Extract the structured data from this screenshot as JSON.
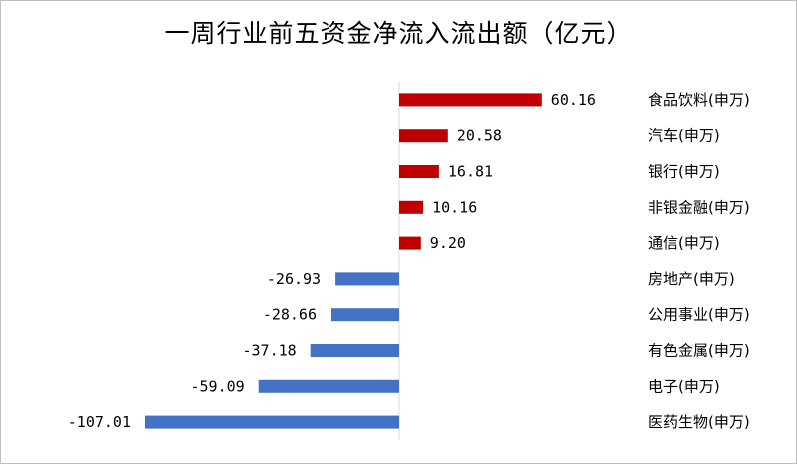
{
  "chart_data": {
    "type": "bar",
    "orientation": "horizontal",
    "title": "一周行业前五资金净流入流出额（亿元）",
    "xlabel": "",
    "ylabel": "",
    "categories": [
      "食品饮料(申万)",
      "汽车(申万)",
      "银行(申万)",
      "非银金融(申万)",
      "通信(申万)",
      "房地产(申万)",
      "公用事业(申万)",
      "有色金属(申万)",
      "电子(申万)",
      "医药生物(申万)"
    ],
    "values": [
      60.16,
      20.58,
      16.81,
      10.16,
      9.2,
      -26.93,
      -28.66,
      -37.18,
      -59.09,
      -107.01
    ],
    "value_labels": [
      "60.16",
      "20.58",
      "16.81",
      "10.16",
      "9.20",
      "-26.93",
      "-28.66",
      "-37.18",
      "-59.09",
      "-107.01"
    ],
    "xlim": [
      -107.01,
      60.16
    ],
    "grid": false,
    "legend": "none",
    "colors": {
      "positive": "#c00000",
      "negative": "#4472c4",
      "axis": "#d9d9d9"
    }
  }
}
